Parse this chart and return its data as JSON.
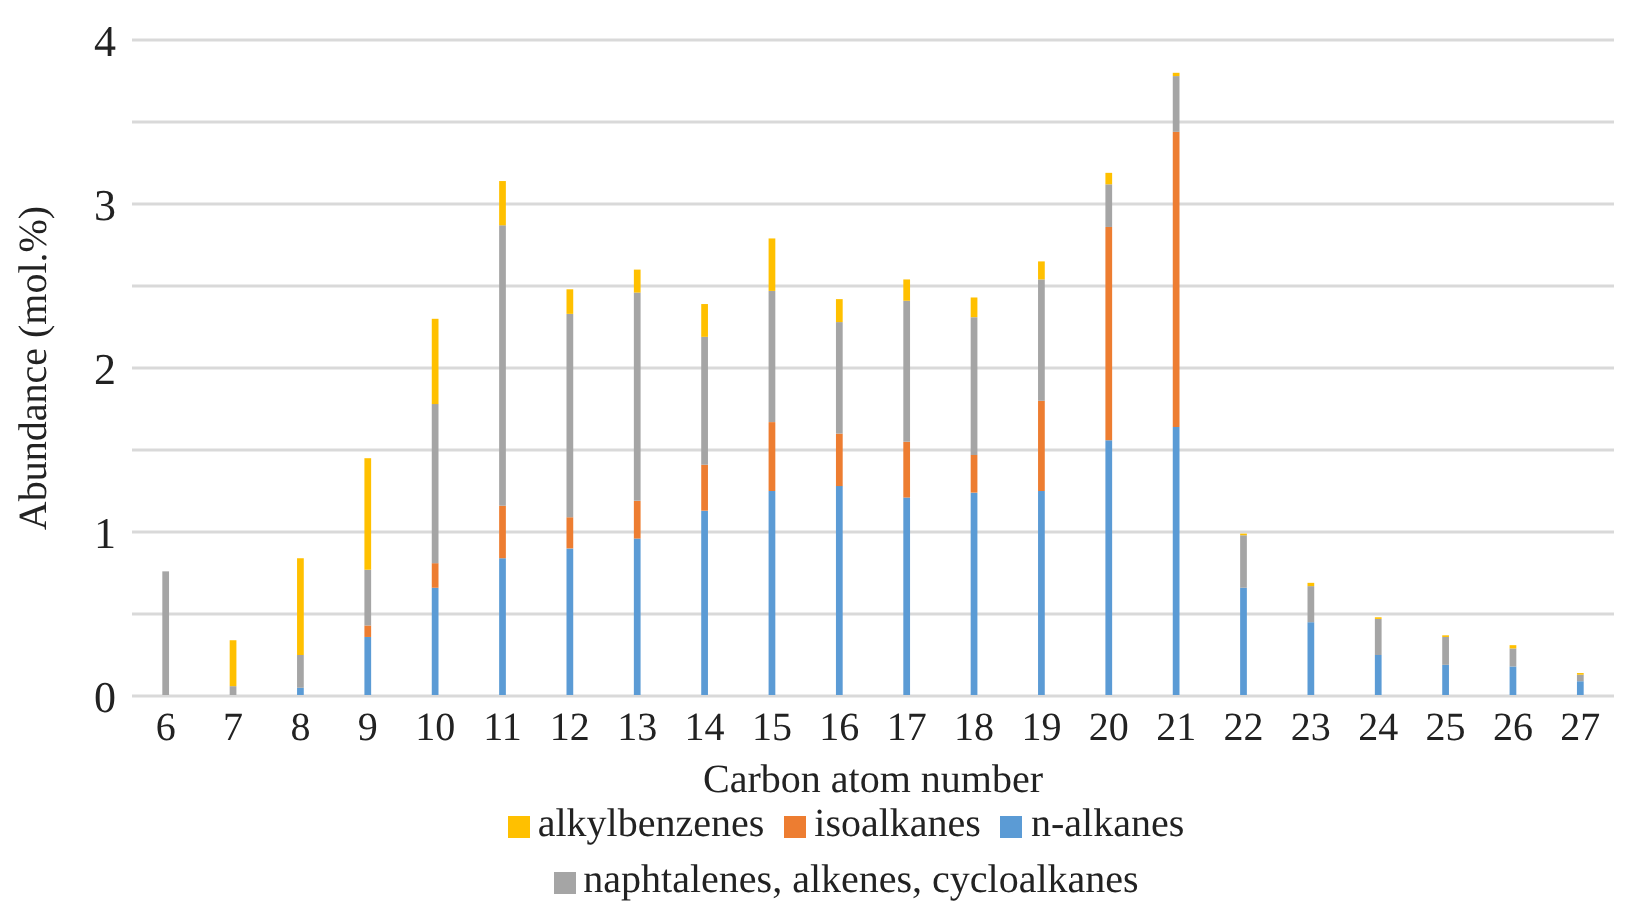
{
  "chart_data": {
    "type": "bar",
    "stacked": true,
    "xlabel": "Carbon atom number",
    "ylabel": "Abundance (mol.%)",
    "categories": [
      "6",
      "7",
      "8",
      "9",
      "10",
      "11",
      "12",
      "13",
      "14",
      "15",
      "16",
      "17",
      "18",
      "19",
      "20",
      "21",
      "22",
      "23",
      "24",
      "25",
      "26",
      "27"
    ],
    "series": [
      {
        "name": "n-alkanes",
        "color": "#5b9bd5",
        "values": [
          0,
          0,
          0.05,
          0.36,
          0.66,
          0.84,
          0.9,
          0.96,
          1.13,
          1.25,
          1.28,
          1.21,
          1.24,
          1.25,
          1.56,
          1.64,
          0.66,
          0.45,
          0.25,
          0.19,
          0.18,
          0.09
        ]
      },
      {
        "name": "isoalkanes",
        "color": "#ed7d31",
        "values": [
          0,
          0,
          0,
          0.07,
          0.15,
          0.32,
          0.19,
          0.23,
          0.28,
          0.42,
          0.32,
          0.34,
          0.23,
          0.55,
          1.3,
          1.8,
          0,
          0,
          0,
          0,
          0,
          0
        ]
      },
      {
        "name": "naphtalenes, alkenes, cycloalkanes",
        "color": "#a5a5a5",
        "values": [
          0.76,
          0.06,
          0.2,
          0.34,
          0.97,
          1.71,
          1.24,
          1.27,
          0.78,
          0.8,
          0.68,
          0.86,
          0.84,
          0.74,
          0.26,
          0.34,
          0.32,
          0.22,
          0.22,
          0.17,
          0.11,
          0.04
        ]
      },
      {
        "name": "alkylbenzenes",
        "color": "#ffc000",
        "values": [
          0,
          0.28,
          0.59,
          0.68,
          0.52,
          0.27,
          0.15,
          0.14,
          0.2,
          0.32,
          0.14,
          0.13,
          0.12,
          0.11,
          0.07,
          0.02,
          0.01,
          0.02,
          0.01,
          0.01,
          0.02,
          0.01
        ]
      }
    ],
    "ylim": [
      0,
      4
    ],
    "yticks": [
      0,
      {
        "value": 0.5,
        "label": null
      },
      1,
      {
        "value": 1.5,
        "label": null
      },
      2,
      {
        "value": 2.5,
        "label": null
      },
      3,
      {
        "value": 3.5,
        "label": null
      },
      4
    ],
    "grid": "y",
    "legend": "bottom"
  }
}
